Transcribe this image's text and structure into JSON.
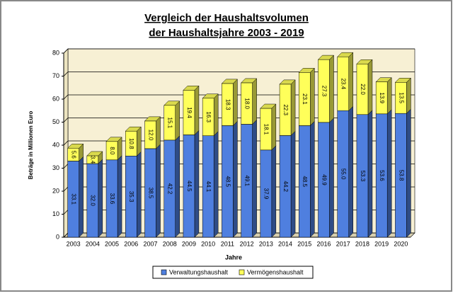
{
  "chart_data": {
    "type": "bar3d-stacked",
    "title": [
      "Vergleich der Haushaltsvolumen",
      "der Haushaltsjahre 2003 - 2019"
    ],
    "y_label": "Beträge in Millionen Euro",
    "x_label": "Jahre",
    "categories": [
      "2003",
      "2004",
      "2005",
      "2006",
      "2007",
      "2008",
      "2009",
      "2010",
      "2011",
      "2012",
      "2013",
      "2014",
      "2015",
      "2016",
      "2017",
      "2018",
      "2019",
      "2020"
    ],
    "series": [
      {
        "name": "Verwaltungshaushalt",
        "color": "#4f7fdf",
        "values": [
          33.1,
          32.0,
          33.6,
          35.3,
          38.5,
          42.2,
          44.5,
          44.1,
          48.5,
          49.1,
          37.9,
          44.2,
          48.5,
          49.9,
          55.0,
          53.3,
          53.6,
          53.8
        ],
        "value_labels": [
          "33.1",
          "32.0",
          "33.6",
          "35.3",
          "38.5",
          "42.2",
          "44.5",
          "44.1",
          "48.5",
          "49.1",
          "37.9",
          "44.2",
          "48.5",
          "49.9",
          "55.0",
          "53.3",
          "53.6",
          "53.8"
        ]
      },
      {
        "name": "Vermögenshaushalt",
        "color": "#ffff5a",
        "values": [
          5.6,
          3.4,
          8.0,
          10.8,
          12.0,
          15.1,
          19.4,
          16.3,
          18.3,
          18.0,
          18.1,
          22.3,
          23.1,
          27.3,
          23.4,
          22.0,
          13.9,
          13.5
        ],
        "value_labels": [
          "5.6",
          "3.4",
          "8.0",
          "10.8",
          "12.0",
          "15.1",
          "19.4",
          "16.3",
          "18.3",
          "18.0",
          "18.1",
          "22.3",
          "23.1",
          "27.3",
          "23.4",
          "22.0",
          "13.9",
          "13.5"
        ]
      }
    ],
    "ylim": [
      0,
      80
    ],
    "yticks": [
      0,
      10,
      20,
      30,
      40,
      50,
      60,
      70,
      80
    ],
    "grid": true
  }
}
